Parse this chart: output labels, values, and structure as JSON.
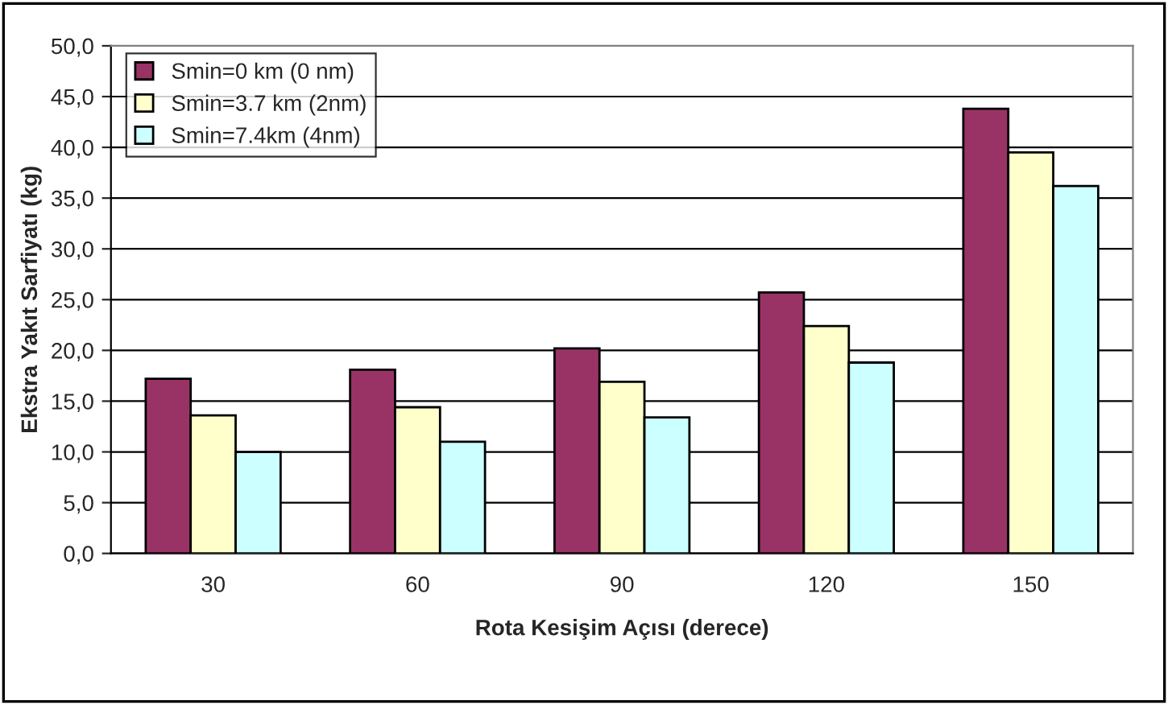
{
  "chart_data": {
    "type": "bar",
    "xlabel": "Rota Kesişim Açısı (derece)",
    "ylabel": "Ekstra Yakıt Sarfiyatı (kg)",
    "categories": [
      "30",
      "60",
      "90",
      "120",
      "150"
    ],
    "series": [
      {
        "name": "Smin=0 km (0 nm)",
        "color": "#993366",
        "values": [
          17.2,
          18.1,
          20.2,
          25.7,
          43.8
        ]
      },
      {
        "name": "Smin=3.7 km (2nm)",
        "color": "#ffffcc",
        "values": [
          13.6,
          14.4,
          16.9,
          22.4,
          39.5
        ]
      },
      {
        "name": "Smin=7.4km (4nm)",
        "color": "#ccffff",
        "values": [
          10.0,
          11.0,
          13.4,
          18.8,
          36.2
        ]
      }
    ],
    "ylim": [
      0,
      50
    ],
    "yticks": [
      {
        "value": 0,
        "label": "0,0"
      },
      {
        "value": 5,
        "label": "5,0"
      },
      {
        "value": 10,
        "label": "10,0"
      },
      {
        "value": 15,
        "label": "15,0"
      },
      {
        "value": 20,
        "label": "20,0"
      },
      {
        "value": 25,
        "label": "25,0"
      },
      {
        "value": 30,
        "label": "30,0"
      },
      {
        "value": 35,
        "label": "35,0"
      },
      {
        "value": 40,
        "label": "40,0"
      },
      {
        "value": 45,
        "label": "45,0"
      },
      {
        "value": 50,
        "label": "50,0"
      }
    ],
    "grid": "y",
    "legend": "top left"
  }
}
